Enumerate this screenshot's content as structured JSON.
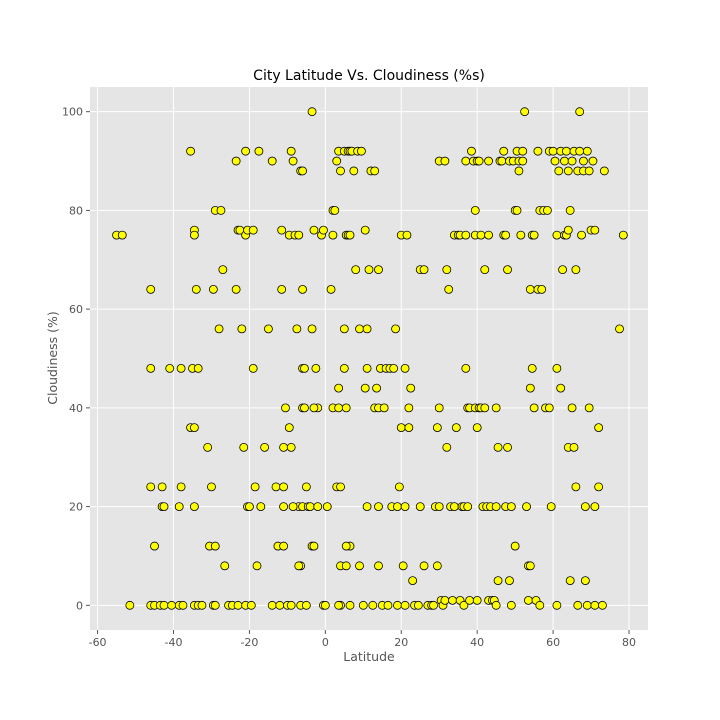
{
  "chart_data": {
    "type": "scatter",
    "title": "City Latitude Vs. Cloudiness (%s)",
    "xlabel": "Latitude",
    "ylabel": "Cloudiness (%)",
    "xlim": [
      -62,
      85
    ],
    "ylim": [
      -5,
      105
    ],
    "xticks": [
      -60,
      -40,
      -20,
      0,
      20,
      40,
      60,
      80
    ],
    "yticks": [
      0,
      20,
      40,
      60,
      80,
      100
    ],
    "grid": true,
    "colors": {
      "background": "#e5e5e5",
      "grid": "#ffffff",
      "marker_fill": "#ffff00",
      "marker_edge": "#000000"
    },
    "points": [
      [
        -55,
        75
      ],
      [
        -53.5,
        75
      ],
      [
        -51.5,
        0
      ],
      [
        -46,
        64
      ],
      [
        -46,
        48
      ],
      [
        -46,
        24
      ],
      [
        -45,
        12
      ],
      [
        -46,
        0
      ],
      [
        -45,
        0
      ],
      [
        -43,
        20
      ],
      [
        -43,
        24
      ],
      [
        -42.5,
        20
      ],
      [
        -41,
        48
      ],
      [
        -43.5,
        0
      ],
      [
        -42.5,
        0
      ],
      [
        -40.5,
        0
      ],
      [
        -38,
        48
      ],
      [
        -38,
        24
      ],
      [
        -38.5,
        20
      ],
      [
        -38.5,
        0
      ],
      [
        -37.5,
        0
      ],
      [
        -35.5,
        92
      ],
      [
        -34.5,
        76
      ],
      [
        -34.5,
        75
      ],
      [
        -34,
        64
      ],
      [
        -35,
        48
      ],
      [
        -35.5,
        36
      ],
      [
        -34.5,
        36
      ],
      [
        -33.5,
        48
      ],
      [
        -34.5,
        20
      ],
      [
        -34.5,
        0
      ],
      [
        -33.5,
        0
      ],
      [
        -32.5,
        0
      ],
      [
        -31,
        32
      ],
      [
        -30.5,
        12
      ],
      [
        -30,
        24
      ],
      [
        -29.5,
        64
      ],
      [
        -29,
        80
      ],
      [
        -28,
        56
      ],
      [
        -27.5,
        80
      ],
      [
        -27,
        68
      ],
      [
        -29,
        12
      ],
      [
        -29.5,
        0
      ],
      [
        -29,
        0
      ],
      [
        -26.5,
        8
      ],
      [
        -25.5,
        0
      ],
      [
        -24.5,
        0
      ],
      [
        -23,
        0
      ],
      [
        -23.5,
        64
      ],
      [
        -23.5,
        90
      ],
      [
        -23,
        76
      ],
      [
        -22.5,
        76
      ],
      [
        -22,
        56
      ],
      [
        -21.5,
        32
      ],
      [
        -21,
        75
      ],
      [
        -21,
        0
      ],
      [
        -20.5,
        76
      ],
      [
        -21,
        92
      ],
      [
        -20.5,
        20
      ],
      [
        -20,
        20
      ],
      [
        -19.5,
        0
      ],
      [
        -19,
        76
      ],
      [
        -19,
        48
      ],
      [
        -18.5,
        24
      ],
      [
        -18,
        8
      ],
      [
        -17.5,
        92
      ],
      [
        -17,
        20
      ],
      [
        -16,
        32
      ],
      [
        -15,
        56
      ],
      [
        -14,
        0
      ],
      [
        -14,
        90
      ],
      [
        -13,
        24
      ],
      [
        -12.5,
        12
      ],
      [
        -12,
        0
      ],
      [
        -11.5,
        76
      ],
      [
        -11.5,
        64
      ],
      [
        -11,
        32
      ],
      [
        -11,
        24
      ],
      [
        -11,
        20
      ],
      [
        -11,
        12
      ],
      [
        -10.5,
        40
      ],
      [
        -10,
        0
      ],
      [
        -9.5,
        75
      ],
      [
        -9,
        92
      ],
      [
        -8.5,
        90
      ],
      [
        -8,
        75
      ],
      [
        -7.5,
        56
      ],
      [
        -7,
        75
      ],
      [
        -6.5,
        88
      ],
      [
        -6,
        88
      ],
      [
        -6,
        64
      ],
      [
        -6,
        48
      ],
      [
        -5.5,
        48
      ],
      [
        -6,
        40
      ],
      [
        -5.5,
        40
      ],
      [
        -9.5,
        36
      ],
      [
        -9,
        32
      ],
      [
        -7,
        20
      ],
      [
        -6.5,
        8
      ],
      [
        -7,
        8
      ],
      [
        -6,
        20
      ],
      [
        -5,
        24
      ],
      [
        -4.5,
        20
      ],
      [
        -4,
        20
      ],
      [
        -3.5,
        12
      ],
      [
        -3.5,
        56
      ],
      [
        -3.5,
        100
      ],
      [
        -3,
        76
      ],
      [
        -2.5,
        48
      ],
      [
        -2,
        40
      ],
      [
        -3,
        40
      ],
      [
        -2,
        20
      ],
      [
        -3,
        12
      ],
      [
        -1,
        75
      ],
      [
        -0.5,
        76
      ],
      [
        -0.5,
        0
      ],
      [
        0,
        0
      ],
      [
        0.5,
        20
      ],
      [
        -6.5,
        0
      ],
      [
        -9,
        0
      ],
      [
        -8.5,
        20
      ],
      [
        -5,
        0
      ],
      [
        1.5,
        64
      ],
      [
        2,
        80
      ],
      [
        2,
        75
      ],
      [
        2.5,
        80
      ],
      [
        2,
        40
      ],
      [
        3,
        90
      ],
      [
        3.5,
        92
      ],
      [
        4,
        88
      ],
      [
        3.5,
        44
      ],
      [
        3,
        24
      ],
      [
        3.5,
        40
      ],
      [
        4,
        24
      ],
      [
        4,
        8
      ],
      [
        4,
        0
      ],
      [
        3.5,
        0
      ],
      [
        5,
        92
      ],
      [
        5,
        56
      ],
      [
        5,
        48
      ],
      [
        5.5,
        75
      ],
      [
        6,
        92
      ],
      [
        6,
        75
      ],
      [
        6.5,
        75
      ],
      [
        6.5,
        92
      ],
      [
        6.5,
        12
      ],
      [
        5.5,
        12
      ],
      [
        5.5,
        40
      ],
      [
        5.5,
        8
      ],
      [
        6.5,
        0
      ],
      [
        7,
        92
      ],
      [
        7.5,
        88
      ],
      [
        8,
        68
      ],
      [
        8.5,
        92
      ],
      [
        9,
        56
      ],
      [
        9.5,
        92
      ],
      [
        9,
        8
      ],
      [
        10,
        0
      ],
      [
        10.5,
        76
      ],
      [
        10.5,
        44
      ],
      [
        11,
        48
      ],
      [
        11,
        56
      ],
      [
        11,
        20
      ],
      [
        11.5,
        68
      ],
      [
        12,
        88
      ],
      [
        12.5,
        0
      ],
      [
        13,
        88
      ],
      [
        13,
        40
      ],
      [
        13.5,
        44
      ],
      [
        14,
        40
      ],
      [
        14,
        68
      ],
      [
        14,
        20
      ],
      [
        14,
        8
      ],
      [
        14.5,
        48
      ],
      [
        15,
        0
      ],
      [
        15.5,
        40
      ],
      [
        16,
        48
      ],
      [
        16.5,
        0
      ],
      [
        17,
        48
      ],
      [
        17.5,
        20
      ],
      [
        18,
        48
      ],
      [
        18.5,
        56
      ],
      [
        19,
        0
      ],
      [
        19.5,
        24
      ],
      [
        19,
        20
      ],
      [
        20,
        75
      ],
      [
        20,
        36
      ],
      [
        20.5,
        8
      ],
      [
        21,
        48
      ],
      [
        21,
        0
      ],
      [
        21,
        20
      ],
      [
        21.5,
        75
      ],
      [
        22,
        36
      ],
      [
        22,
        40
      ],
      [
        22.5,
        44
      ],
      [
        23,
        5
      ],
      [
        23.5,
        0
      ],
      [
        24.5,
        0
      ],
      [
        25,
        68
      ],
      [
        25,
        20
      ],
      [
        26,
        68
      ],
      [
        26,
        8
      ],
      [
        27,
        0
      ],
      [
        28,
        0
      ],
      [
        28.5,
        0
      ],
      [
        29,
        20
      ],
      [
        29.5,
        8
      ],
      [
        29.5,
        36
      ],
      [
        30,
        90
      ],
      [
        30,
        40
      ],
      [
        30,
        20
      ],
      [
        30.5,
        1
      ],
      [
        31,
        0
      ],
      [
        31.5,
        90
      ],
      [
        31.5,
        1
      ],
      [
        32,
        68
      ],
      [
        32,
        32
      ],
      [
        32.5,
        64
      ],
      [
        33,
        20
      ],
      [
        33.5,
        1
      ],
      [
        34,
        75
      ],
      [
        34,
        20
      ],
      [
        34.5,
        36
      ],
      [
        35,
        75
      ],
      [
        35.5,
        75
      ],
      [
        35.5,
        1
      ],
      [
        36,
        20
      ],
      [
        36.5,
        0
      ],
      [
        36.5,
        20
      ],
      [
        37,
        90
      ],
      [
        37,
        75
      ],
      [
        37,
        48
      ],
      [
        37.5,
        40
      ],
      [
        37.5,
        20
      ],
      [
        38,
        40
      ],
      [
        38,
        1
      ],
      [
        38.5,
        92
      ],
      [
        39,
        90
      ],
      [
        39.5,
        80
      ],
      [
        39.5,
        75
      ],
      [
        39.5,
        40
      ],
      [
        40,
        90
      ],
      [
        40,
        36
      ],
      [
        40,
        1
      ],
      [
        40.5,
        90
      ],
      [
        40.5,
        40
      ],
      [
        41,
        75
      ],
      [
        41,
        40
      ],
      [
        41.5,
        20
      ],
      [
        42,
        68
      ],
      [
        42,
        40
      ],
      [
        42.5,
        20
      ],
      [
        43,
        90
      ],
      [
        43,
        75
      ],
      [
        43,
        1
      ],
      [
        43.5,
        20
      ],
      [
        44,
        1
      ],
      [
        44.5,
        1
      ],
      [
        45,
        0
      ],
      [
        45,
        40
      ],
      [
        45,
        20
      ],
      [
        45.5,
        32
      ],
      [
        45.5,
        5
      ],
      [
        46,
        90
      ],
      [
        46.5,
        90
      ],
      [
        47,
        75
      ],
      [
        47.5,
        75
      ],
      [
        47,
        92
      ],
      [
        47.5,
        20
      ],
      [
        48,
        68
      ],
      [
        48,
        32
      ],
      [
        48.5,
        90
      ],
      [
        48.5,
        5
      ],
      [
        49,
        0
      ],
      [
        49,
        20
      ],
      [
        49.5,
        90
      ],
      [
        50,
        80
      ],
      [
        50,
        12
      ],
      [
        50.5,
        80
      ],
      [
        50.5,
        92
      ],
      [
        51,
        88
      ],
      [
        51,
        90
      ],
      [
        51.5,
        75
      ],
      [
        52,
        92
      ],
      [
        52,
        90
      ],
      [
        52.5,
        100
      ],
      [
        53,
        20
      ],
      [
        53.5,
        8
      ],
      [
        53.5,
        1
      ],
      [
        54,
        64
      ],
      [
        54,
        44
      ],
      [
        54,
        8
      ],
      [
        54.5,
        75
      ],
      [
        54.5,
        48
      ],
      [
        55,
        75
      ],
      [
        55,
        40
      ],
      [
        55.5,
        1
      ],
      [
        56,
        64
      ],
      [
        56,
        92
      ],
      [
        56.5,
        80
      ],
      [
        56.5,
        0
      ],
      [
        57,
        64
      ],
      [
        57.5,
        80
      ],
      [
        58,
        40
      ],
      [
        58.5,
        80
      ],
      [
        59,
        92
      ],
      [
        59,
        40
      ],
      [
        59.5,
        20
      ],
      [
        60,
        92
      ],
      [
        60.5,
        90
      ],
      [
        61,
        75
      ],
      [
        61,
        48
      ],
      [
        61,
        0
      ],
      [
        61.5,
        88
      ],
      [
        62,
        92
      ],
      [
        62,
        44
      ],
      [
        62.5,
        68
      ],
      [
        63,
        75
      ],
      [
        63,
        90
      ],
      [
        63.5,
        92
      ],
      [
        63.5,
        75
      ],
      [
        64,
        76
      ],
      [
        64,
        88
      ],
      [
        64,
        32
      ],
      [
        64.5,
        5
      ],
      [
        64.5,
        80
      ],
      [
        65,
        90
      ],
      [
        65,
        40
      ],
      [
        65.5,
        92
      ],
      [
        65.5,
        32
      ],
      [
        66,
        68
      ],
      [
        66,
        24
      ],
      [
        66.5,
        88
      ],
      [
        66.5,
        0
      ],
      [
        67,
        100
      ],
      [
        67,
        92
      ],
      [
        67.5,
        75
      ],
      [
        68,
        90
      ],
      [
        68,
        88
      ],
      [
        68.5,
        5
      ],
      [
        68.5,
        20
      ],
      [
        69,
        92
      ],
      [
        69,
        0
      ],
      [
        69.5,
        88
      ],
      [
        69.5,
        40
      ],
      [
        70,
        76
      ],
      [
        70.5,
        90
      ],
      [
        71,
        76
      ],
      [
        71,
        20
      ],
      [
        71,
        0
      ],
      [
        72,
        24
      ],
      [
        72,
        36
      ],
      [
        73,
        0
      ],
      [
        73.5,
        88
      ],
      [
        77.5,
        56
      ],
      [
        78.5,
        75
      ]
    ]
  }
}
